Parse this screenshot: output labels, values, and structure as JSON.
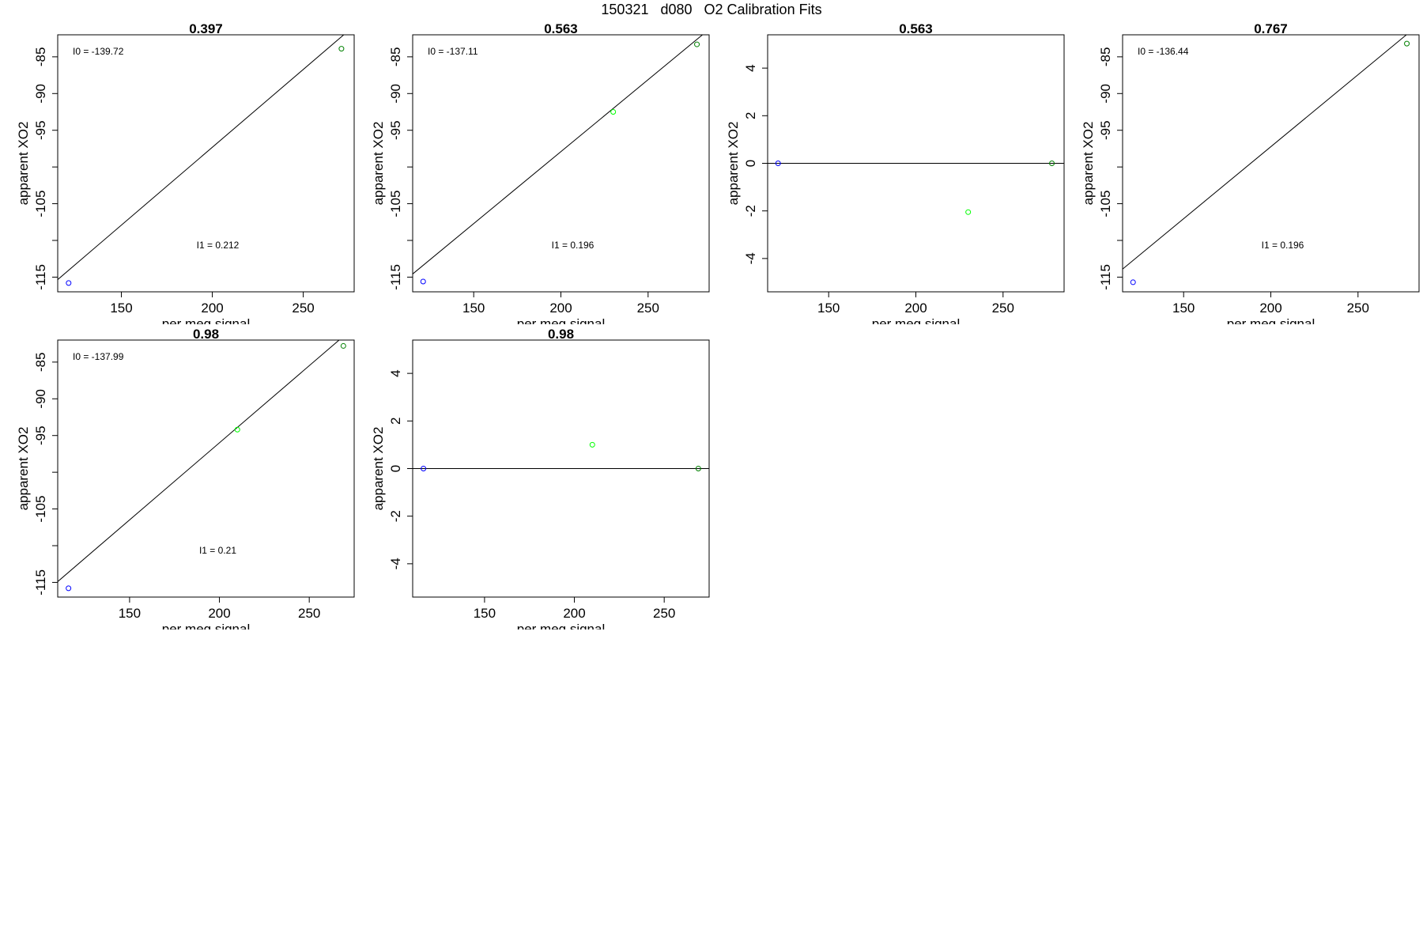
{
  "page": {
    "title": "150321   d080   O2 Calibration Fits"
  },
  "colors": {
    "blue": "#0000ff",
    "green": "#00ff00",
    "darkgreen": "#008000",
    "axis": "#000000"
  },
  "chart_data": [
    {
      "type": "scatter",
      "title": "0.397",
      "xlabel": "per meg signal",
      "ylabel": "apparent XO2",
      "xlim": [
        115,
        278
      ],
      "ylim": [
        -117,
        -82
      ],
      "xticks": [
        150,
        200,
        250
      ],
      "yticks": [
        -85,
        -90,
        -95,
        -100,
        -105,
        -110,
        -115
      ],
      "ytick_labels": [
        "-85",
        "-90",
        "-95",
        "",
        "-105",
        "",
        "-115"
      ],
      "points": [
        {
          "x": 121,
          "y": -115.8,
          "color": "blue"
        },
        {
          "x": 271,
          "y": -83.9,
          "color": "darkgreen"
        }
      ],
      "fit_line": {
        "intercept": -139.72,
        "slope": 0.212
      },
      "annotations": {
        "intercept": "I0 =  -139.72",
        "slope": "I1 =  0.212"
      }
    },
    {
      "type": "scatter",
      "title": "0.563",
      "xlabel": "per meg signal",
      "ylabel": "apparent XO2",
      "xlim": [
        115,
        285
      ],
      "ylim": [
        -117,
        -82
      ],
      "xticks": [
        150,
        200,
        250
      ],
      "yticks": [
        -85,
        -90,
        -95,
        -100,
        -105,
        -110,
        -115
      ],
      "ytick_labels": [
        "-85",
        "-90",
        "-95",
        "",
        "-105",
        "",
        "-115"
      ],
      "points": [
        {
          "x": 121,
          "y": -115.6,
          "color": "blue"
        },
        {
          "x": 230,
          "y": -92.5,
          "color": "green"
        },
        {
          "x": 278,
          "y": -83.3,
          "color": "darkgreen"
        }
      ],
      "fit_line": {
        "intercept": -137.11,
        "slope": 0.196
      },
      "annotations": {
        "intercept": "I0 =  -137.11",
        "slope": "I1 =  0.196"
      }
    },
    {
      "type": "scatter",
      "title": "0.563",
      "xlabel": "per meg signal",
      "ylabel": "apparent XO2",
      "xlim": [
        115,
        285
      ],
      "ylim": [
        -5.4,
        5.4
      ],
      "xticks": [
        150,
        200,
        250
      ],
      "yticks": [
        4,
        2,
        0,
        -2,
        -4
      ],
      "ytick_labels": [
        "4",
        "2",
        "0",
        "-2",
        "-4"
      ],
      "points": [
        {
          "x": 121,
          "y": 0,
          "color": "blue"
        },
        {
          "x": 230,
          "y": -2.05,
          "color": "green"
        },
        {
          "x": 278,
          "y": 0,
          "color": "darkgreen"
        }
      ],
      "hline": 0
    },
    {
      "type": "scatter",
      "title": "0.767",
      "xlabel": "per meg signal",
      "ylabel": "apparent XO2",
      "xlim": [
        115,
        285
      ],
      "ylim": [
        -117,
        -82
      ],
      "xticks": [
        150,
        200,
        250
      ],
      "yticks": [
        -85,
        -90,
        -95,
        -100,
        -105,
        -110,
        -115
      ],
      "ytick_labels": [
        "-85",
        "-90",
        "-95",
        "",
        "-105",
        "",
        "-115"
      ],
      "points": [
        {
          "x": 121,
          "y": -115.7,
          "color": "blue"
        },
        {
          "x": 278,
          "y": -83.2,
          "color": "darkgreen"
        }
      ],
      "fit_line": {
        "intercept": -136.44,
        "slope": 0.196
      },
      "annotations": {
        "intercept": "I0 =  -136.44",
        "slope": "I1 =  0.196"
      }
    },
    {
      "type": "scatter",
      "title": "0.98",
      "xlabel": "per meg signal",
      "ylabel": "apparent XO2",
      "xlim": [
        110,
        275
      ],
      "ylim": [
        -117,
        -82
      ],
      "xticks": [
        150,
        200,
        250
      ],
      "yticks": [
        -85,
        -90,
        -95,
        -100,
        -105,
        -110,
        -115
      ],
      "ytick_labels": [
        "-85",
        "-90",
        "-95",
        "",
        "-105",
        "",
        "-115"
      ],
      "points": [
        {
          "x": 116,
          "y": -115.8,
          "color": "blue"
        },
        {
          "x": 210,
          "y": -94.2,
          "color": "green"
        },
        {
          "x": 269,
          "y": -82.8,
          "color": "darkgreen"
        }
      ],
      "fit_line": {
        "intercept": -137.99,
        "slope": 0.21
      },
      "annotations": {
        "intercept": "I0 =  -137.99",
        "slope": "I1 =  0.21"
      }
    },
    {
      "type": "scatter",
      "title": "0.98",
      "xlabel": "per meg signal",
      "ylabel": "apparent XO2",
      "xlim": [
        110,
        275
      ],
      "ylim": [
        -5.4,
        5.4
      ],
      "xticks": [
        150,
        200,
        250
      ],
      "yticks": [
        4,
        2,
        0,
        -2,
        -4
      ],
      "ytick_labels": [
        "4",
        "2",
        "0",
        "-2",
        "-4"
      ],
      "points": [
        {
          "x": 116,
          "y": 0,
          "color": "blue"
        },
        {
          "x": 210,
          "y": 1.0,
          "color": "green"
        },
        {
          "x": 269,
          "y": 0,
          "color": "darkgreen"
        }
      ],
      "hline": 0
    }
  ]
}
